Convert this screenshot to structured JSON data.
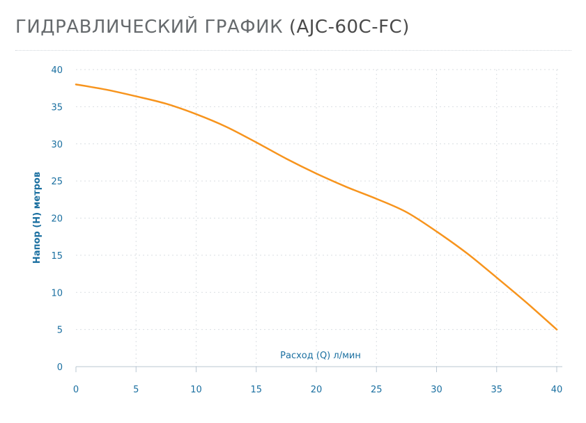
{
  "header": {
    "title_main": "ГИДРАВЛИЧЕСКИЙ ГРАФИК",
    "title_model": "(AJC-60C-FC)"
  },
  "colors": {
    "curve": "#f7941d",
    "axis_text": "#1a6fa0",
    "grid": "#d9dee2",
    "title": "#666a6d"
  },
  "chart_data": {
    "type": "line",
    "xlabel": "Расход (Q) л/мин",
    "ylabel": "Напор (H) метров",
    "xlim": [
      0,
      40
    ],
    "ylim": [
      0,
      40
    ],
    "xticks": [
      0,
      5,
      10,
      15,
      20,
      25,
      30,
      35,
      40
    ],
    "yticks": [
      0,
      5,
      10,
      15,
      20,
      25,
      30,
      35,
      40
    ],
    "grid": true,
    "series": [
      {
        "x": [
          0,
          2.5,
          5,
          7.5,
          10,
          12.5,
          15,
          17.5,
          20,
          22.5,
          25,
          27.5,
          30,
          32.5,
          35,
          37.5,
          40
        ],
        "y": [
          38,
          37.3,
          36.4,
          35.4,
          34,
          32.3,
          30.2,
          28,
          26,
          24.2,
          22.6,
          20.8,
          18.2,
          15.3,
          12,
          8.6,
          5
        ]
      }
    ]
  }
}
